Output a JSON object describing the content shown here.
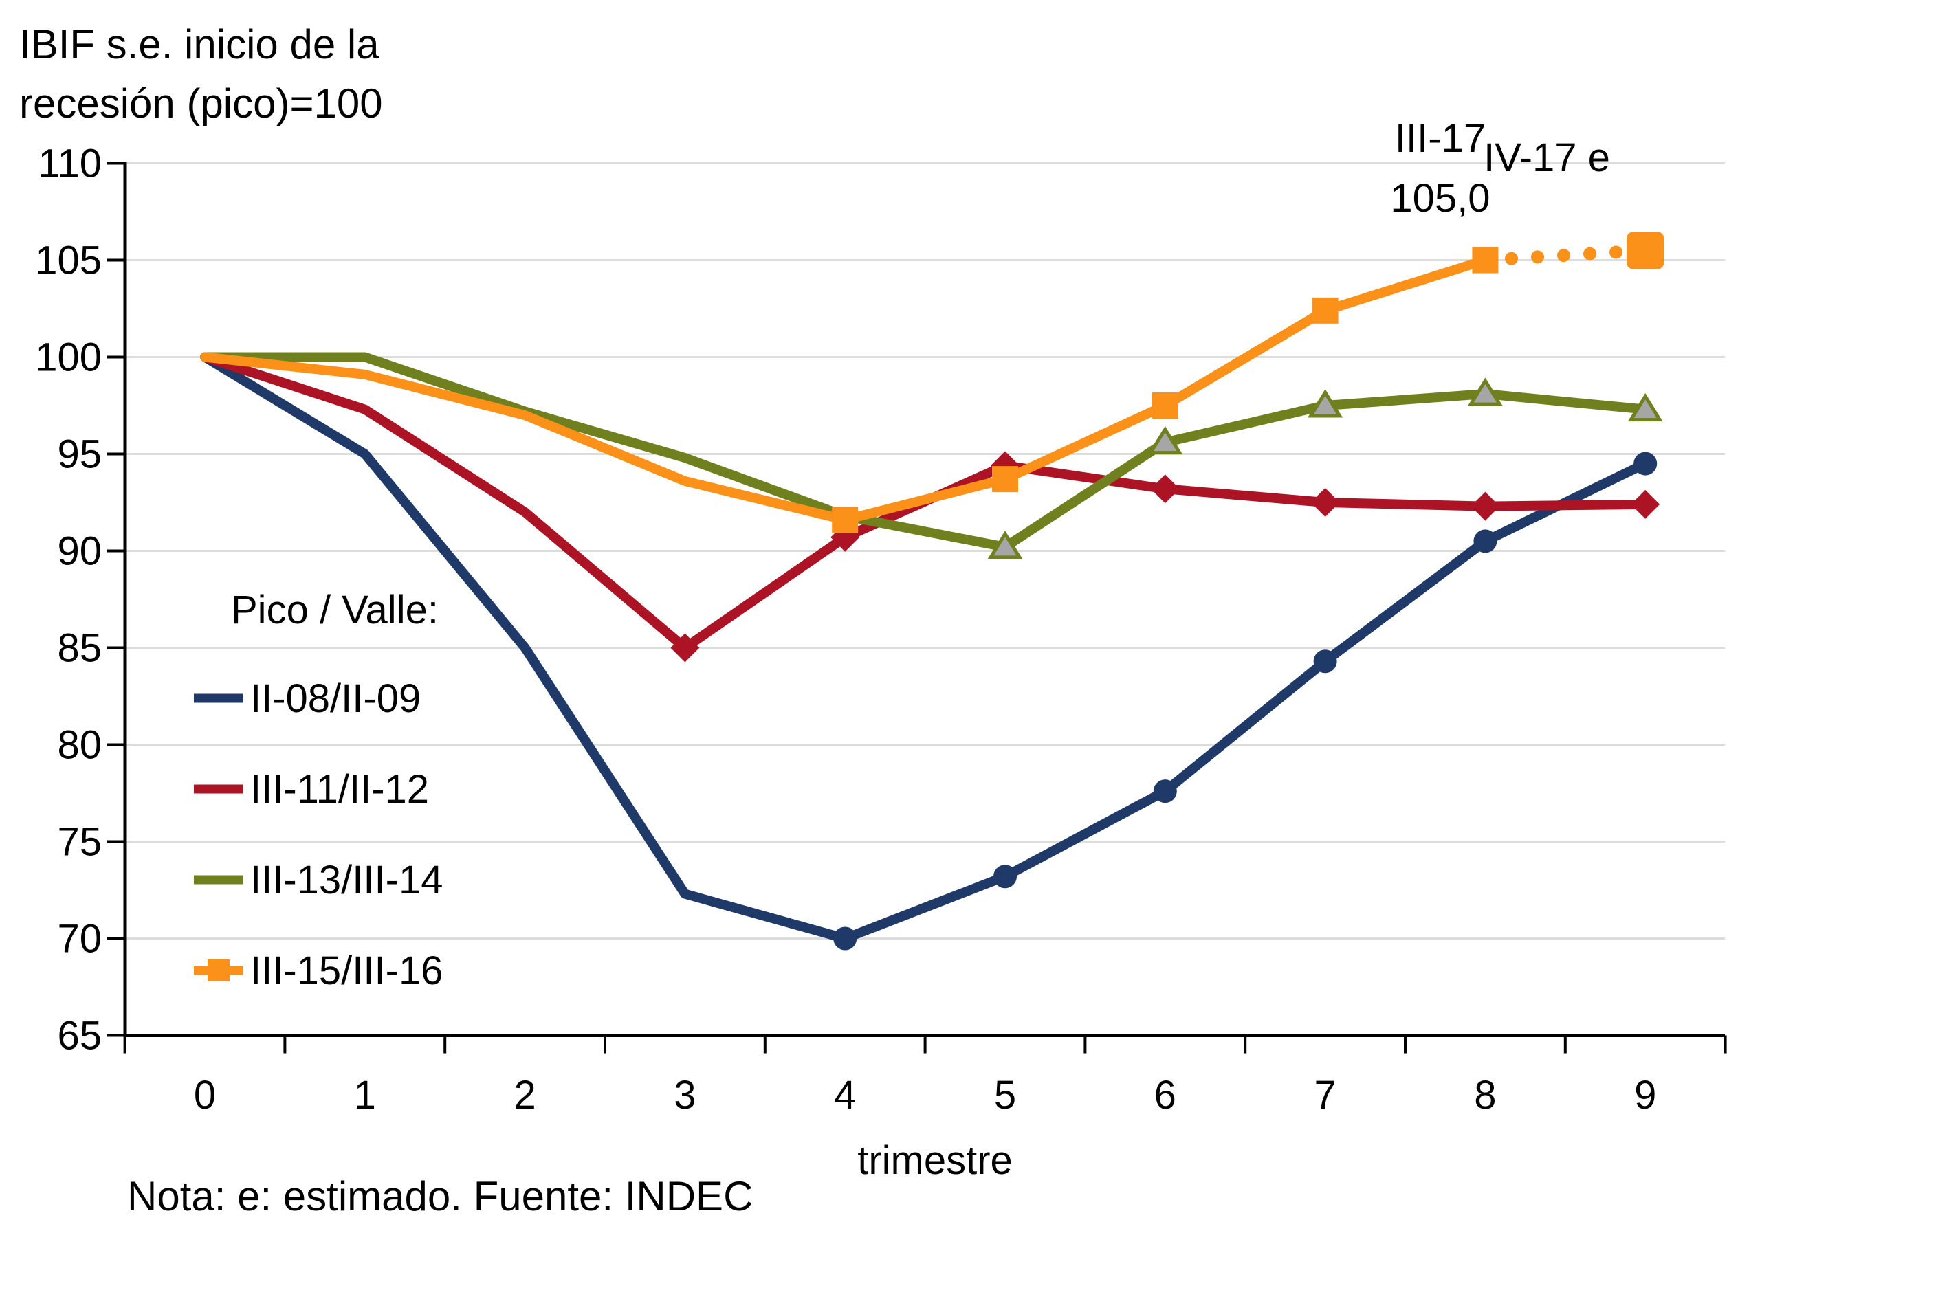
{
  "title": {
    "line1": "IBIF s.e. inicio de la",
    "line2": "recesión (pico)=100"
  },
  "note": "Nota: e: estimado. Fuente: INDEC",
  "annotations": {
    "peak_quarter": "III-17",
    "peak_value": "105,0",
    "estimate": "IV-17 e"
  },
  "legend": {
    "heading": "Pico / Valle:",
    "items": [
      {
        "label": "II-08/II-09"
      },
      {
        "label": "III-11/II-12"
      },
      {
        "label": "III-13/III-14"
      },
      {
        "label": "III-15/III-16"
      }
    ]
  },
  "x_axis": {
    "label": "trimestre",
    "ticks": [
      "0",
      "1",
      "2",
      "3",
      "4",
      "5",
      "6",
      "7",
      "8",
      "9"
    ]
  },
  "y_axis": {
    "ticks": [
      "110",
      "105",
      "100",
      "95",
      "90",
      "85",
      "80",
      "75",
      "70",
      "65"
    ]
  },
  "colors": {
    "grid": "#DCDCDC",
    "axis": "#000000",
    "text": "#000000",
    "triangle_fill": "#A6A6A6"
  },
  "chart_data": {
    "type": "line",
    "title": "IBIF s.e. inicio de la recesión (pico)=100",
    "xlabel": "trimestre",
    "x": [
      0,
      1,
      2,
      3,
      4,
      5,
      6,
      7,
      8,
      9
    ],
    "ylim": [
      65,
      110
    ],
    "yticks": [
      110,
      105,
      100,
      95,
      90,
      85,
      80,
      75,
      70,
      65
    ],
    "grid": true,
    "legend_position": "inside-left",
    "series": [
      {
        "name": "II-08/II-09",
        "color": "#1F3A68",
        "marker": "circle",
        "marker_from_index": 4,
        "values": [
          100,
          95.0,
          85.0,
          72.3,
          70.0,
          73.2,
          77.6,
          84.3,
          90.5,
          94.5
        ]
      },
      {
        "name": "III-11/II-12",
        "color": "#AC1426",
        "marker": "diamond",
        "marker_from_index": 3,
        "values": [
          100,
          97.3,
          92.0,
          85.0,
          90.7,
          94.4,
          93.2,
          92.5,
          92.3,
          92.4
        ]
      },
      {
        "name": "III-13/III-14",
        "color": "#70801F",
        "marker": "triangle",
        "marker_from_index": 5,
        "marker_fill": "#A6A6A6",
        "values": [
          100,
          100.0,
          97.2,
          94.8,
          91.8,
          90.2,
          95.6,
          97.5,
          98.1,
          97.3
        ]
      },
      {
        "name": "III-15/III-16",
        "color": "#FB9119",
        "marker": "square",
        "marker_from_index": 4,
        "values": [
          100,
          99.1,
          97.0,
          93.6,
          91.6,
          93.7,
          97.5,
          102.4,
          105.0,
          105.5
        ],
        "last_segment_dotted": true,
        "last_point_estimated": true,
        "estimated_point_label": "IV-17 e",
        "labeled_point": {
          "index": 8,
          "quarter": "III-17",
          "value_text": "105,0"
        }
      }
    ]
  }
}
